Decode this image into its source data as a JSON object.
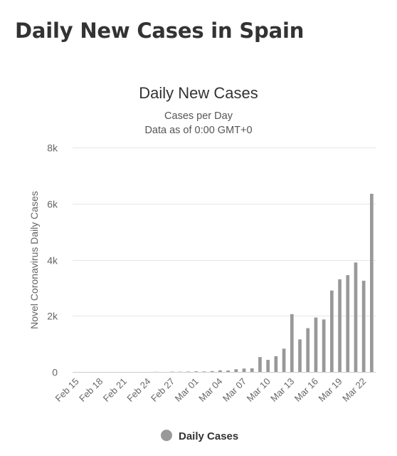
{
  "page": {
    "title": "Daily New Cases in Spain"
  },
  "chart_data": {
    "type": "bar",
    "title": "Daily New Cases",
    "subtitle_lines": [
      "Cases per Day",
      "Data as of 0:00 GMT+0"
    ],
    "xlabel": "",
    "ylabel": "Novel Coronavirus Daily Cases",
    "ylim": [
      0,
      8000
    ],
    "y_ticks": [
      0,
      2000,
      4000,
      6000,
      8000
    ],
    "y_tick_labels": [
      "0",
      "2k",
      "4k",
      "6k",
      "8k"
    ],
    "x_tick_labels": [
      "Feb 15",
      "Feb 18",
      "Feb 21",
      "Feb 24",
      "Feb 27",
      "Mar 01",
      "Mar 04",
      "Mar 07",
      "Mar 10",
      "Mar 13",
      "Mar 16",
      "Mar 19",
      "Mar 22"
    ],
    "grid": true,
    "legend_position": "bottom",
    "bar_color": "#999999",
    "categories": [
      "Feb 15",
      "Feb 16",
      "Feb 17",
      "Feb 18",
      "Feb 19",
      "Feb 20",
      "Feb 21",
      "Feb 22",
      "Feb 23",
      "Feb 24",
      "Feb 25",
      "Feb 26",
      "Feb 27",
      "Feb 28",
      "Feb 29",
      "Mar 01",
      "Mar 02",
      "Mar 03",
      "Mar 04",
      "Mar 05",
      "Mar 06",
      "Mar 07",
      "Mar 08",
      "Mar 09",
      "Mar 10",
      "Mar 11",
      "Mar 12",
      "Mar 13",
      "Mar 14",
      "Mar 15",
      "Mar 16",
      "Mar 17",
      "Mar 18",
      "Mar 19",
      "Mar 20",
      "Mar 21",
      "Mar 22",
      "Mar 23"
    ],
    "series": [
      {
        "name": "Daily Cases",
        "values": [
          0,
          0,
          0,
          0,
          0,
          0,
          0,
          0,
          0,
          0,
          4,
          0,
          10,
          8,
          13,
          21,
          16,
          31,
          57,
          51,
          96,
          120,
          128,
          530,
          430,
          560,
          830,
          2060,
          1160,
          1560,
          1940,
          1870,
          2900,
          3300,
          3450,
          3900,
          3250,
          6350
        ]
      }
    ]
  }
}
